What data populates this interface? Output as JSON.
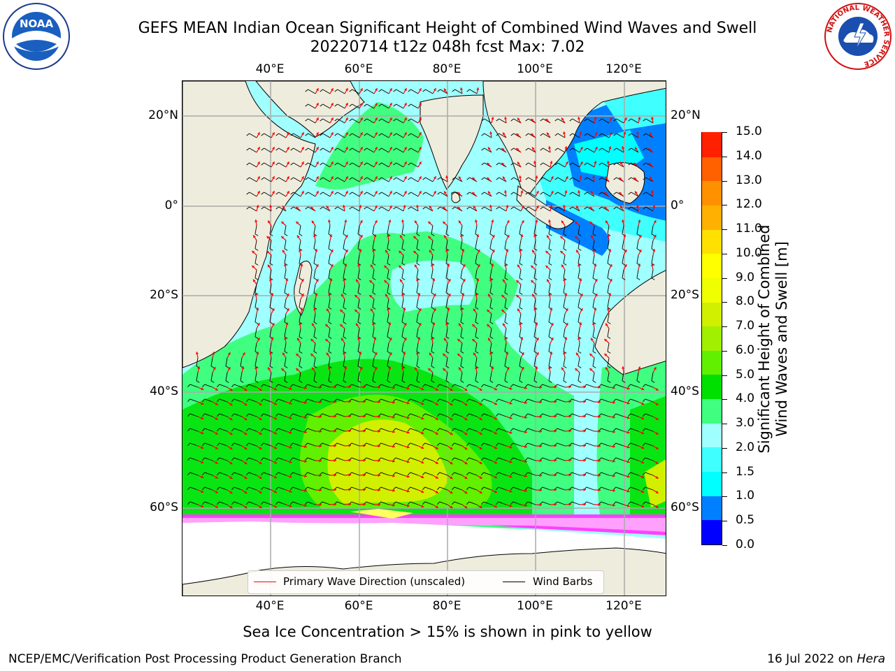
{
  "title": {
    "line1": "GEFS MEAN Indian Ocean Significant Height of Combined Wind Waves and Swell",
    "line2": "20220714 t12z 048h fcst   Max: 7.02"
  },
  "logos": {
    "noaa_text": "NOAA",
    "nws_ring_text": "NATIONAL WEATHER SERVICE"
  },
  "map": {
    "lon_labels": [
      "40°E",
      "60°E",
      "80°E",
      "100°E",
      "120°E"
    ],
    "lat_labels_left": [
      "20°N",
      "0°",
      "20°S",
      "40°S",
      "60°S"
    ],
    "lat_labels_right": [
      "20°N",
      "0°",
      "20°S",
      "40°S",
      "60°S"
    ],
    "colors": {
      "land": "#eeecdc",
      "ice": "#ffffff",
      "grid": "#aaaaaa",
      "arrow": "#ff0000",
      "barb": "#000000"
    }
  },
  "legend": {
    "primary_wave": "Primary Wave Direction (unscaled)",
    "wind_barbs": "Wind Barbs",
    "primary_color": "#ff0000",
    "barb_color": "#000000"
  },
  "colorbar": {
    "label": "Significant Height of Combined Wind Waves and Swell [m]",
    "label_line1": "Significant Height of Combined",
    "label_line2": "Wind Waves and Swell [m]",
    "ticks": [
      "15.0",
      "14.0",
      "13.0",
      "12.0",
      "11.0",
      "10.0",
      "9.0",
      "8.0",
      "7.0",
      "6.0",
      "5.0",
      "4.0",
      "3.0",
      "2.0",
      "1.5",
      "1.0",
      "0.5",
      "0.0"
    ],
    "colors": [
      "#0000ff",
      "#0080ff",
      "#00ffff",
      "#40ffff",
      "#a0ffff",
      "#40ff80",
      "#00e000",
      "#60f000",
      "#a0f000",
      "#d0f000",
      "#f0ff00",
      "#ffff00",
      "#ffe000",
      "#ffb000",
      "#ff9000",
      "#ff6000",
      "#ff2000"
    ]
  },
  "footer": {
    "ice_note": "Sea Ice Concentration > 15% is shown in pink to yellow",
    "branch": "NCEP/EMC/Verification Post Processing Product Generation Branch",
    "date": "16 Jul 2022 on",
    "host": "Hera"
  }
}
